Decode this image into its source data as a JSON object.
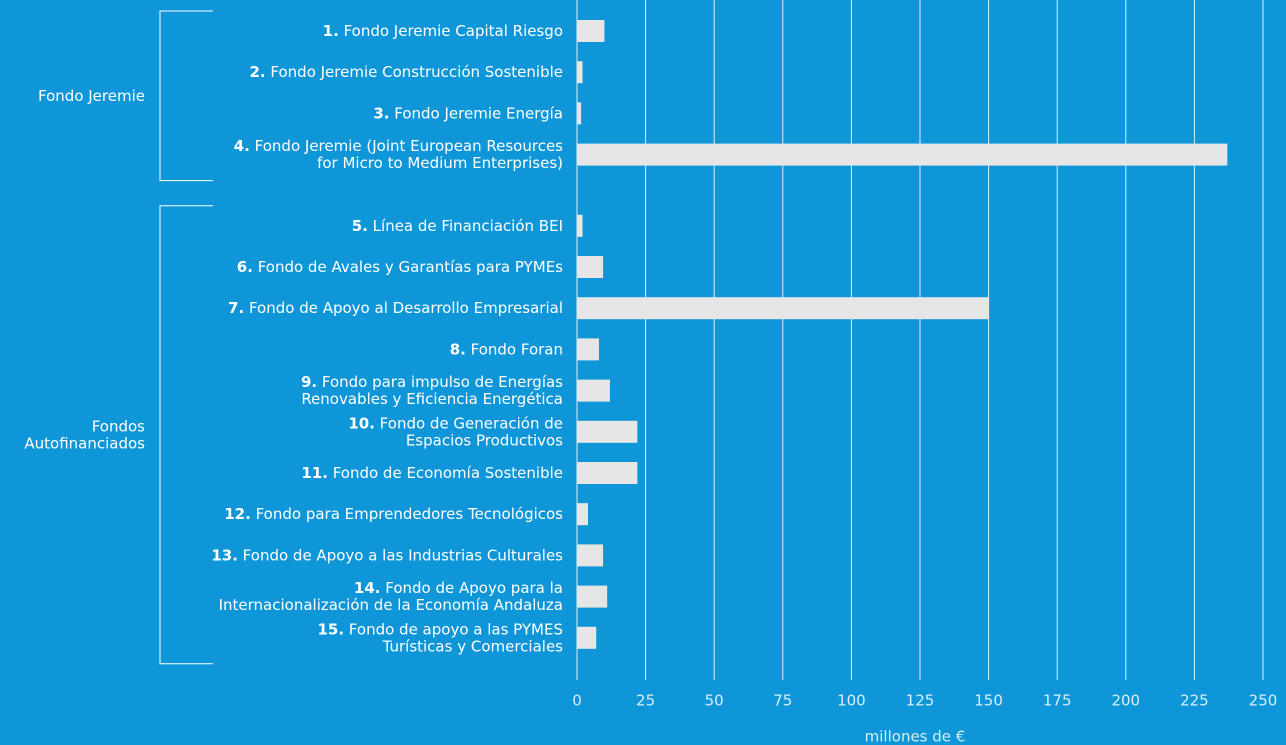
{
  "chart_data": {
    "type": "bar",
    "orientation": "horizontal",
    "categories": [
      "1. Fondo Jeremie Capital Riesgo",
      "2. Fondo Jeremie Construcción Sostenible",
      "3. Fondo Jeremie Energía",
      "4. Fondo Jeremie (Joint European Resources\nfor Micro to Medium Enterprises)",
      "5. Línea de Financiación BEI",
      "6. Fondo de Avales y Garantías para PYMEs",
      "7. Fondo de Apoyo al Desarrollo Empresarial",
      "8. Fondo Foran",
      "9. Fondo para impulso de Energías\nRenovables y Eficiencia Energética",
      "10. Fondo de Generación de\nEspacios Productivos",
      "11. Fondo de Economía Sostenible",
      "12. Fondo para Emprendedores Tecnológicos",
      "13. Fondo de Apoyo a las Industrias Culturales",
      "14. Fondo de Apoyo para la\nInternacionalización de la Economía Andaluza",
      "15. Fondo de apoyo a las PYMES\nTurísticas y Comerciales"
    ],
    "values": [
      10,
      2,
      1.5,
      237,
      2,
      9.5,
      150,
      8,
      12,
      22,
      22,
      4,
      9.5,
      11,
      7
    ],
    "color": "#e6e6e6",
    "groups": [
      {
        "name": "Fondo Jeremie",
        "size": 4
      },
      {
        "name": "Fondos\nAutofinanciados",
        "size": 11
      }
    ],
    "xlim": [
      0,
      250
    ],
    "xticks": [
      0,
      25,
      50,
      75,
      100,
      125,
      150,
      175,
      200,
      225,
      250
    ],
    "xlabel": "millones de €",
    "grid": true
  }
}
